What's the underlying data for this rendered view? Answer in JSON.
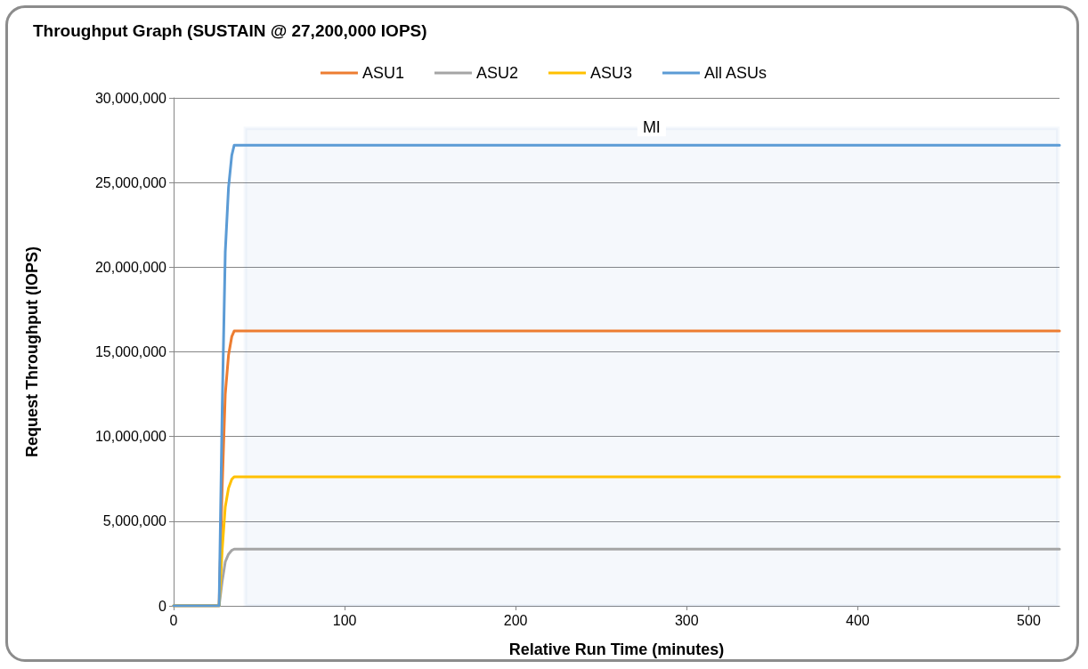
{
  "chart_data": {
    "type": "line",
    "title": "Throughput Graph (SUSTAIN @ 27,200,000 IOPS)",
    "xlabel": "Relative Run Time (minutes)",
    "ylabel": "Request Throughput (IOPS)",
    "series": [
      {
        "name": "ASU1",
        "color": "#ed7d31",
        "x": [
          0,
          26.6,
          28.4,
          30.2,
          32.1,
          34,
          35.4,
          100,
          200,
          300,
          400,
          518
        ],
        "values": [
          0,
          0,
          7000000,
          12500000,
          14800000,
          15900000,
          16230000,
          16230000,
          16230000,
          16230000,
          16230000,
          16230000
        ]
      },
      {
        "name": "ASU2",
        "color": "#a5a5a5",
        "x": [
          0,
          26.6,
          28.4,
          30.2,
          32.1,
          34,
          35.4,
          100,
          200,
          300,
          400,
          518
        ],
        "values": [
          0,
          0,
          1450000,
          2600000,
          3050000,
          3280000,
          3350000,
          3350000,
          3350000,
          3350000,
          3350000,
          3350000
        ]
      },
      {
        "name": "ASU3",
        "color": "#ffc000",
        "x": [
          0,
          26.6,
          28.4,
          30.2,
          32.1,
          34,
          35.4,
          100,
          200,
          300,
          400,
          518
        ],
        "values": [
          0,
          0,
          3300000,
          5850000,
          6950000,
          7470000,
          7620000,
          7620000,
          7620000,
          7620000,
          7620000,
          7620000
        ]
      },
      {
        "name": "All ASUs",
        "color": "#5b9bd5",
        "x": [
          0,
          26.6,
          28.4,
          30.2,
          32.1,
          34,
          35.4,
          100,
          200,
          300,
          400,
          518
        ],
        "values": [
          0,
          0,
          11600000,
          20900000,
          24700000,
          26600000,
          27200000,
          27200000,
          27200000,
          27200000,
          27200000,
          27200000
        ]
      }
    ],
    "bands": [
      {
        "axis": "x",
        "from": 42,
        "to": 517,
        "label": "MI",
        "color": "#4472c4"
      }
    ],
    "xlim": [
      0,
      518
    ],
    "xticks": [
      0,
      100,
      200,
      300,
      400,
      500
    ],
    "ylim": [
      0,
      30000000
    ],
    "yticks": [
      0,
      {
        "value": 5000000,
        "label": "5,000,000"
      },
      {
        "value": 10000000,
        "label": "10,000,000"
      },
      {
        "value": 15000000,
        "label": "15,000,000"
      },
      {
        "value": 20000000,
        "label": "20,000,000"
      },
      {
        "value": 25000000,
        "label": "25,000,000"
      },
      {
        "value": 30000000,
        "label": "30,000,000"
      }
    ],
    "grid": "y",
    "legend": "top",
    "marker": "none",
    "line_style": "solid"
  }
}
